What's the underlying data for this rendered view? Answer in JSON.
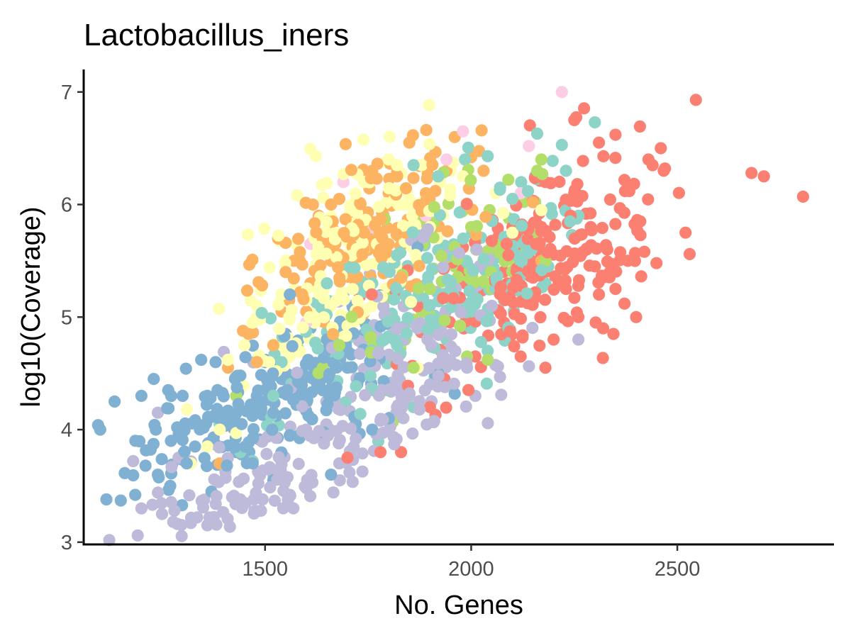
{
  "chart_data": {
    "type": "scatter",
    "title": "Lactobacillus_iners",
    "xlabel": "No. Genes",
    "ylabel": "log10(Coverage)",
    "xlim": [
      1060,
      2880
    ],
    "ylim": [
      2.98,
      7.2
    ],
    "xticks": [
      1500,
      2000,
      2500
    ],
    "yticks": [
      3,
      4,
      5,
      6,
      7
    ],
    "grid": false,
    "legend": "none",
    "point_seed": 2024,
    "series": [
      {
        "color": "#80B1D3",
        "points": [
          [
            1095,
            4.04
          ],
          [
            1100,
            4.0
          ],
          [
            1115,
            3.38
          ],
          [
            1135,
            4.25
          ],
          [
            1150,
            3.37
          ],
          [
            1185,
            3.42
          ],
          [
            1200,
            4.3
          ],
          [
            1210,
            3.68
          ],
          [
            1230,
            4.45
          ],
          [
            1235,
            4.0
          ],
          [
            1240,
            3.6
          ],
          [
            1265,
            4.35
          ],
          [
            1270,
            3.5
          ],
          [
            1300,
            4.3
          ],
          [
            1310,
            3.7
          ],
          [
            1345,
            4.62
          ],
          [
            1360,
            4.3
          ],
          [
            1380,
            4.6
          ],
          [
            1420,
            4.1
          ],
          [
            1440,
            4.48
          ],
          [
            1480,
            4.3
          ],
          [
            1500,
            4.6
          ],
          [
            1520,
            4.15
          ],
          [
            1550,
            4.85
          ],
          [
            1560,
            5.2
          ],
          [
            1590,
            4.5
          ],
          [
            1610,
            4.9
          ],
          [
            1640,
            4.35
          ],
          [
            1650,
            4.8
          ],
          [
            1660,
            3.6
          ],
          [
            1700,
            4.55
          ],
          [
            1720,
            4.05
          ],
          [
            1760,
            4.0
          ],
          [
            1800,
            4.1
          ],
          [
            1830,
            4.4
          ],
          [
            1870,
            5.62
          ],
          [
            1920,
            4.5
          ],
          [
            1960,
            4.32
          ],
          [
            1370,
            3.45
          ],
          [
            1330,
            3.85
          ],
          [
            1430,
            3.8
          ],
          [
            1470,
            3.7
          ],
          [
            1520,
            3.55
          ],
          [
            1560,
            3.95
          ]
        ],
        "clusters": [
          [
            1430,
            4.1,
            150,
            0.28,
            140,
            -0.6
          ],
          [
            1620,
            4.55,
            120,
            0.25,
            60,
            -0.5
          ]
        ]
      },
      {
        "color": "#BEBADA",
        "points": [
          [
            1180,
            3.72
          ],
          [
            1200,
            3.3
          ],
          [
            1240,
            4.15
          ],
          [
            1250,
            3.25
          ],
          [
            1280,
            3.28
          ],
          [
            1290,
            3.75
          ],
          [
            1320,
            3.17
          ],
          [
            1335,
            3.22
          ],
          [
            1360,
            3.15
          ],
          [
            1400,
            4.69
          ],
          [
            1420,
            3.4
          ],
          [
            1440,
            3.38
          ],
          [
            1490,
            3.28
          ],
          [
            1520,
            3.6
          ],
          [
            1560,
            3.42
          ],
          [
            1600,
            3.48
          ],
          [
            1680,
            3.7
          ],
          [
            1720,
            3.92
          ],
          [
            1780,
            4.08
          ],
          [
            1820,
            4.2
          ],
          [
            1850,
            4.3
          ],
          [
            1870,
            4.9
          ],
          [
            1900,
            4.4
          ],
          [
            1950,
            4.6
          ],
          [
            1990,
            4.55
          ],
          [
            2010,
            4.3
          ],
          [
            2050,
            5.1
          ],
          [
            2260,
            4.8
          ],
          [
            1940,
            5.55
          ],
          [
            1890,
            5.75
          ]
        ],
        "clusters": [
          [
            1520,
            3.55,
            180,
            0.25,
            110,
            -0.5
          ],
          [
            1790,
            4.35,
            130,
            0.35,
            90,
            -0.4
          ],
          [
            1880,
            4.95,
            100,
            0.4,
            50,
            -0.3
          ]
        ]
      },
      {
        "color": "#FB8072",
        "points": [
          [
            1700,
            3.75
          ],
          [
            1780,
            3.8
          ],
          [
            1830,
            3.8
          ],
          [
            1900,
            4.2
          ],
          [
            1935,
            4.45
          ],
          [
            2010,
            4.65
          ],
          [
            2120,
            4.65
          ],
          [
            2180,
            4.55
          ],
          [
            2200,
            4.8
          ],
          [
            2230,
            5.25
          ],
          [
            2260,
            5.0
          ],
          [
            2290,
            5.8
          ],
          [
            2310,
            5.2
          ],
          [
            2320,
            4.9
          ],
          [
            2345,
            4.85
          ],
          [
            2380,
            5.5
          ],
          [
            2400,
            5.0
          ],
          [
            2410,
            5.85
          ],
          [
            2420,
            5.58
          ],
          [
            2430,
            6.4
          ],
          [
            2440,
            6.35
          ],
          [
            2460,
            6.5
          ],
          [
            2470,
            6.32
          ],
          [
            2520,
            5.75
          ],
          [
            2530,
            5.56
          ],
          [
            2545,
            6.93
          ],
          [
            2680,
            6.28
          ],
          [
            2710,
            6.25
          ],
          [
            2805,
            6.07
          ],
          [
            2250,
            6.75
          ],
          [
            2310,
            6.55
          ],
          [
            2350,
            6.62
          ],
          [
            2330,
            5.6
          ],
          [
            2350,
            5.25
          ],
          [
            2300,
            5.45
          ],
          [
            2280,
            5.6
          ],
          [
            2100,
            5.8
          ],
          [
            2150,
            5.35
          ],
          [
            2080,
            4.95
          ],
          [
            2250,
            6.1
          ],
          [
            2180,
            6.2
          ],
          [
            2090,
            5.55
          ]
        ],
        "clusters": [
          [
            2120,
            5.45,
            150,
            0.42,
            150,
            -0.2
          ],
          [
            2250,
            5.55,
            90,
            0.4,
            50,
            -0.2
          ]
        ]
      },
      {
        "color": "#8DD3C7",
        "points": [
          [
            1390,
            4.05
          ],
          [
            1440,
            3.8
          ],
          [
            1470,
            3.72
          ],
          [
            1520,
            4.3
          ],
          [
            1540,
            4.6
          ],
          [
            1580,
            4.7
          ],
          [
            1650,
            5.3
          ],
          [
            1690,
            5.2
          ],
          [
            1760,
            5.3
          ],
          [
            1820,
            5.55
          ],
          [
            1860,
            6.35
          ],
          [
            1920,
            6.25
          ],
          [
            1985,
            6.4
          ],
          [
            2040,
            6.43
          ],
          [
            2070,
            6.15
          ],
          [
            2100,
            6.05
          ],
          [
            2160,
            6.63
          ],
          [
            2220,
            6.53
          ],
          [
            2230,
            6.3
          ],
          [
            2300,
            6.73
          ],
          [
            2240,
            5.85
          ],
          [
            2260,
            5.9
          ],
          [
            2080,
            5.25
          ],
          [
            2000,
            5.05
          ],
          [
            2040,
            4.7
          ],
          [
            1940,
            4.8
          ],
          [
            1800,
            4.35
          ],
          [
            1860,
            4.2
          ],
          [
            1820,
            4.75
          ],
          [
            2180,
            5.3
          ]
        ],
        "clusters": [
          [
            1820,
            5.05,
            130,
            0.35,
            110,
            -0.2
          ],
          [
            2030,
            5.45,
            110,
            0.35,
            80,
            -0.2
          ]
        ]
      },
      {
        "color": "#B3DE69",
        "points": [
          [
            1430,
            4.3
          ],
          [
            1580,
            4.72
          ],
          [
            1640,
            4.55
          ],
          [
            1680,
            4.75
          ],
          [
            1760,
            4.78
          ],
          [
            1790,
            4.35
          ],
          [
            1810,
            4.07
          ],
          [
            1840,
            4.8
          ],
          [
            1880,
            5.05
          ],
          [
            1900,
            5.25
          ],
          [
            1960,
            5.45
          ],
          [
            1990,
            4.65
          ],
          [
            2040,
            4.62
          ],
          [
            2050,
            5.25
          ],
          [
            2090,
            6.22
          ],
          [
            2120,
            5.6
          ],
          [
            2160,
            6.3
          ],
          [
            2170,
            6.4
          ],
          [
            2160,
            5.75
          ],
          [
            2180,
            5.5
          ],
          [
            2220,
            5.35
          ],
          [
            2000,
            5.8
          ],
          [
            1940,
            5.2
          ],
          [
            1860,
            4.55
          ]
        ],
        "clusters": [
          [
            1930,
            5.35,
            100,
            0.35,
            60,
            -0.2
          ]
        ]
      },
      {
        "color": "#FDB462",
        "points": [
          [
            1390,
            3.7
          ],
          [
            1410,
            4.55
          ],
          [
            1460,
            4.85
          ],
          [
            1480,
            4.6
          ],
          [
            1520,
            4.75
          ],
          [
            1540,
            5.05
          ],
          [
            1550,
            5.4
          ],
          [
            1570,
            5.5
          ],
          [
            1590,
            5.2
          ],
          [
            1610,
            5.3
          ],
          [
            1630,
            5.9
          ],
          [
            1640,
            5.7
          ],
          [
            1660,
            6.0
          ],
          [
            1680,
            6.05
          ],
          [
            1710,
            5.9
          ],
          [
            1740,
            5.75
          ],
          [
            1760,
            6.3
          ],
          [
            1800,
            6.1
          ],
          [
            1820,
            6.25
          ],
          [
            1850,
            6.55
          ],
          [
            1890,
            6.1
          ],
          [
            1940,
            6.3
          ],
          [
            1960,
            6.6
          ],
          [
            2000,
            6.42
          ],
          [
            2030,
            6.3
          ],
          [
            2150,
            6.02
          ],
          [
            2170,
            5.5
          ],
          [
            1840,
            5.75
          ],
          [
            1780,
            5.6
          ],
          [
            1660,
            5.5
          ],
          [
            1720,
            5.3
          ],
          [
            1600,
            5.05
          ]
        ],
        "clusters": [
          [
            1690,
            5.55,
            110,
            0.35,
            70,
            -0.4
          ],
          [
            1820,
            6.0,
            100,
            0.3,
            60,
            -0.2
          ]
        ]
      },
      {
        "color": "#FFFFB3",
        "points": [
          [
            1310,
            4.18
          ],
          [
            1320,
            3.7
          ],
          [
            1360,
            3.85
          ],
          [
            1390,
            4.0
          ],
          [
            1410,
            4.62
          ],
          [
            1430,
            3.97
          ],
          [
            1450,
            4.75
          ],
          [
            1470,
            4.95
          ],
          [
            1480,
            5.1
          ],
          [
            1510,
            4.6
          ],
          [
            1540,
            5.2
          ],
          [
            1560,
            4.65
          ],
          [
            1590,
            4.4
          ],
          [
            1600,
            5.15
          ],
          [
            1620,
            4.95
          ],
          [
            1640,
            4.5
          ],
          [
            1660,
            4.75
          ],
          [
            1690,
            6.27
          ],
          [
            1720,
            5.05
          ],
          [
            1760,
            5.1
          ],
          [
            1800,
            6.4
          ],
          [
            1820,
            6.35
          ],
          [
            1850,
            6.0
          ],
          [
            1880,
            6.35
          ],
          [
            1900,
            5.8
          ],
          [
            1950,
            6.3
          ],
          [
            1980,
            6.25
          ],
          [
            2030,
            6.3
          ],
          [
            2060,
            6.1
          ],
          [
            2100,
            5.75
          ],
          [
            2170,
            5.95
          ],
          [
            1740,
            6.2
          ],
          [
            1870,
            4.55
          ]
        ],
        "clusters": [
          [
            1680,
            5.55,
            110,
            0.4,
            60,
            -0.3
          ],
          [
            1790,
            5.8,
            110,
            0.35,
            60,
            -0.3
          ],
          [
            1600,
            5.0,
            80,
            0.25,
            40,
            -0.2
          ]
        ]
      },
      {
        "color": "#FCCDE5",
        "points": [
          [
            1610,
            5.65
          ],
          [
            1690,
            6.2
          ],
          [
            1800,
            5.55
          ],
          [
            1940,
            6.4
          ],
          [
            1980,
            6.65
          ],
          [
            2140,
            6.52
          ],
          [
            2220,
            7.0
          ],
          [
            2090,
            5.55
          ],
          [
            1890,
            5.9
          ],
          [
            1750,
            5.75
          ],
          [
            2120,
            6.1
          ],
          [
            1600,
            4.95
          ]
        ],
        "clusters": []
      }
    ]
  }
}
